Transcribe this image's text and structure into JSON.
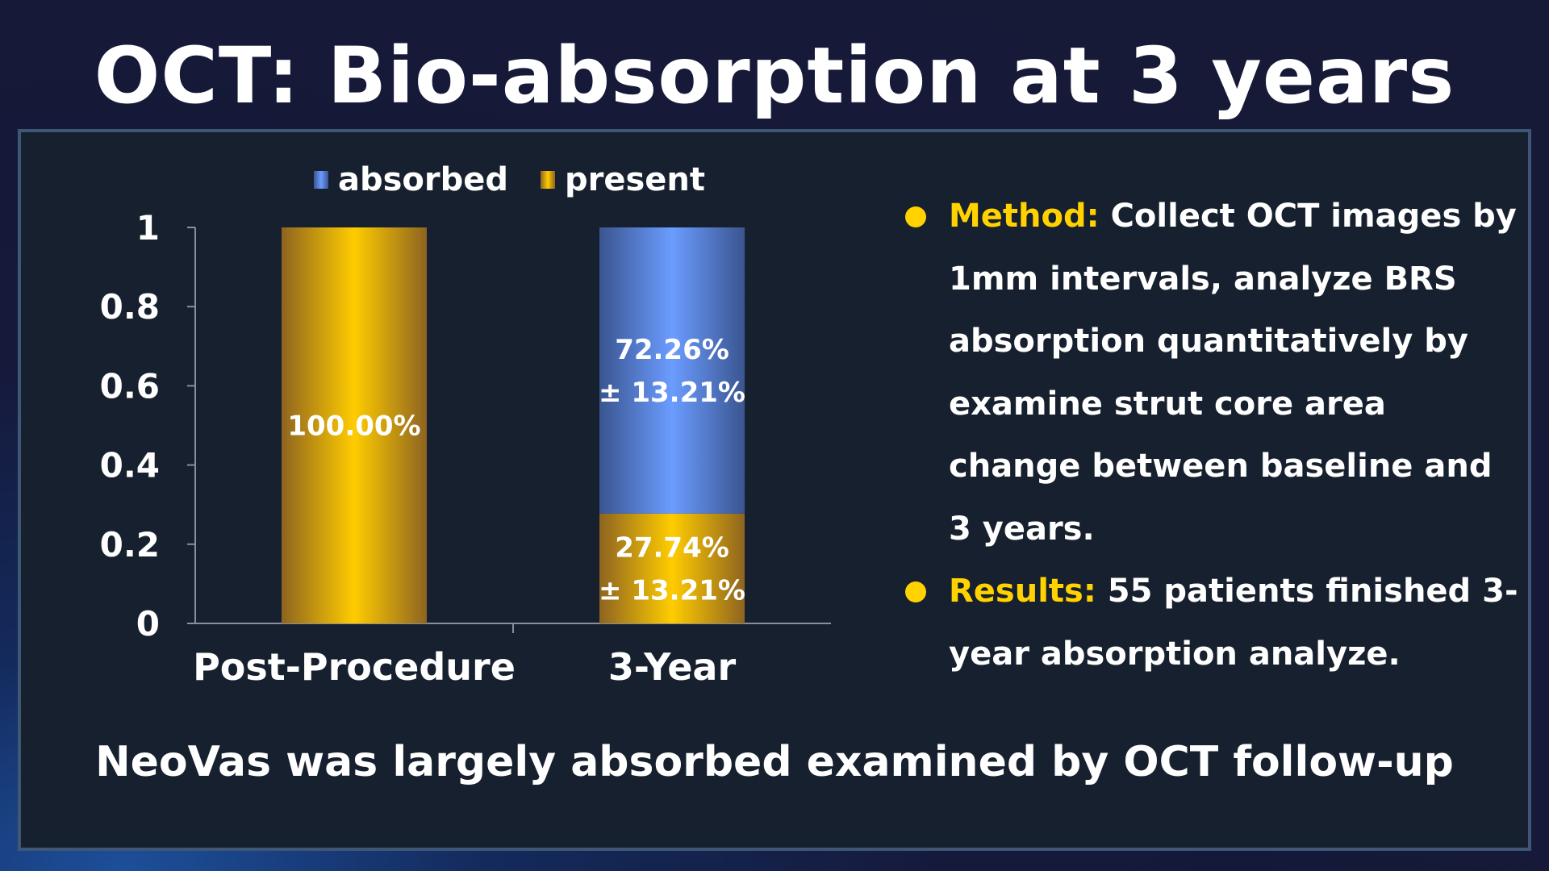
{
  "slide": {
    "title": "OCT: Bio-absorption at 3 years",
    "caption": "NeoVas  was largely absorbed examined by OCT follow-up"
  },
  "bullets": [
    {
      "lead": "Method:",
      "text": "Collect OCT images by 1mm intervals, analyze BRS absorption  quantitatively  by examine strut core area change between baseline and 3 years."
    },
    {
      "lead": "Results:",
      "text": "55 patients finished 3-year absorption analyze."
    }
  ],
  "colors": {
    "accent_yellow": "#ffd200",
    "absorbed_blue": "#5f8ee0",
    "present_gold": "#f0b818"
  },
  "chart_data": {
    "type": "bar",
    "stacked": true,
    "categories": [
      "Post-Procedure",
      "3-Year"
    ],
    "series": [
      {
        "name": "present",
        "values": [
          1.0,
          0.2774
        ],
        "labels": [
          [
            "100.00%"
          ],
          [
            "27.74%",
            "± 13.21%"
          ]
        ]
      },
      {
        "name": "absorbed",
        "values": [
          0.0,
          0.7226
        ],
        "labels": [
          [],
          [
            "72.26%",
            "± 13.21%"
          ]
        ]
      }
    ],
    "legend": [
      "absorbed",
      "present"
    ],
    "legend_position": "top",
    "ylim": [
      0,
      1
    ],
    "yticks": [
      "0",
      "0.2",
      "0.4",
      "0.6",
      "0.8",
      "1"
    ],
    "ytick_values": [
      0,
      0.2,
      0.4,
      0.6,
      0.8,
      1
    ],
    "grid": false
  }
}
